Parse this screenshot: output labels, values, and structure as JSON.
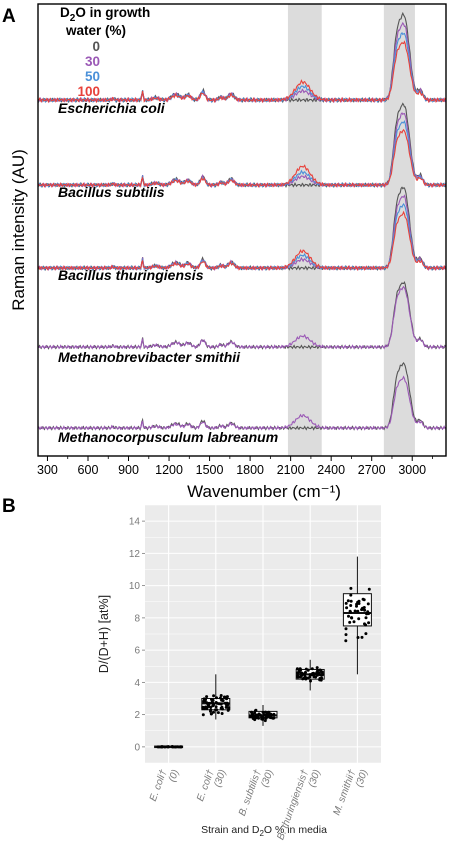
{
  "chart_data": [
    {
      "panel": "A",
      "type": "line",
      "ylabel": "Raman intensity (AU)",
      "xlabel": "Wavenumber (cm⁻¹)",
      "xlim": [
        230,
        3250
      ],
      "xticks": [
        300,
        600,
        900,
        1200,
        1500,
        1800,
        2100,
        2400,
        2700,
        3000
      ],
      "highlight_bands": [
        [
          2080,
          2330
        ],
        [
          2790,
          3020
        ]
      ],
      "legend": {
        "title_line1": "D",
        "title_sub": "2",
        "title_rest": "O in growth",
        "title_line2": "water (%)",
        "entries": [
          {
            "label": "0",
            "color": "#555555"
          },
          {
            "label": "30",
            "color": "#9b59b6"
          },
          {
            "label": "50",
            "color": "#4a90d9"
          },
          {
            "label": "100",
            "color": "#e8413b"
          }
        ]
      },
      "spectra": [
        {
          "organism": "Escherichia coli",
          "series": [
            "0",
            "30",
            "50",
            "100"
          ],
          "cd_peak": {
            "0": 0.0,
            "30": 0.1,
            "50": 0.15,
            "100": 0.2
          },
          "ch_peak": {
            "0": 0.92,
            "30": 0.82,
            "50": 0.72,
            "100": 0.62
          }
        },
        {
          "organism": "Bacillus subtilis",
          "series": [
            "0",
            "30",
            "50",
            "100"
          ],
          "cd_peak": {
            "0": 0.0,
            "30": 0.1,
            "50": 0.15,
            "100": 0.22
          },
          "ch_peak": {
            "0": 0.92,
            "30": 0.82,
            "50": 0.72,
            "100": 0.62
          }
        },
        {
          "organism": "Bacillus thuringiensis",
          "series": [
            "0",
            "30",
            "50",
            "100"
          ],
          "cd_peak": {
            "0": 0.0,
            "30": 0.1,
            "50": 0.15,
            "100": 0.2
          },
          "ch_peak": {
            "0": 0.92,
            "30": 0.82,
            "50": 0.72,
            "100": 0.62
          }
        },
        {
          "organism": "Methanobrevibacter smithii",
          "series": [
            "0",
            "30"
          ],
          "cd_peak": {
            "0": 0.0,
            "30": 0.14
          },
          "ch_peak": {
            "0": 0.8,
            "30": 0.74
          }
        },
        {
          "organism": "Methanocorpusculum labreanum",
          "series": [
            "0",
            "30"
          ],
          "cd_peak": {
            "0": 0.0,
            "30": 0.16
          },
          "ch_peak": {
            "0": 0.8,
            "30": 0.62
          }
        }
      ]
    },
    {
      "panel": "B",
      "type": "box",
      "ylabel": "D/(D+H) [at%]",
      "xlabel_pre": "Strain and D",
      "xlabel_sub": "2",
      "xlabel_post": "O % in media",
      "ylim": [
        -1,
        15
      ],
      "yticks": [
        0,
        2,
        4,
        6,
        8,
        10,
        12,
        14
      ],
      "groups": [
        {
          "label": "E. coli",
          "mark": "†",
          "sub": "(0)",
          "q1": 0.0,
          "median": 0.0,
          "q3": 0.05,
          "whisker_low": 0.0,
          "whisker_high": 0.1,
          "n": 28
        },
        {
          "label": "E. coli",
          "mark": "†",
          "sub": "(30)",
          "q1": 2.3,
          "median": 2.7,
          "q3": 3.0,
          "whisker_low": 1.7,
          "whisker_high": 4.5,
          "n": 70
        },
        {
          "label": "B. subtilis",
          "mark": "†",
          "sub": "(30)",
          "q1": 1.8,
          "median": 1.95,
          "q3": 2.2,
          "whisker_low": 1.3,
          "whisker_high": 2.6,
          "n": 60
        },
        {
          "label": "B. thuringiensis",
          "mark": "†",
          "sub": "(30)",
          "q1": 4.2,
          "median": 4.5,
          "q3": 4.8,
          "whisker_low": 3.5,
          "whisker_high": 5.4,
          "n": 60
        },
        {
          "label": "M. smithii",
          "mark": "†",
          "sub": "(30)",
          "q1": 7.5,
          "median": 8.3,
          "q3": 9.5,
          "whisker_low": 4.5,
          "whisker_high": 11.8,
          "n": 45
        }
      ]
    }
  ]
}
